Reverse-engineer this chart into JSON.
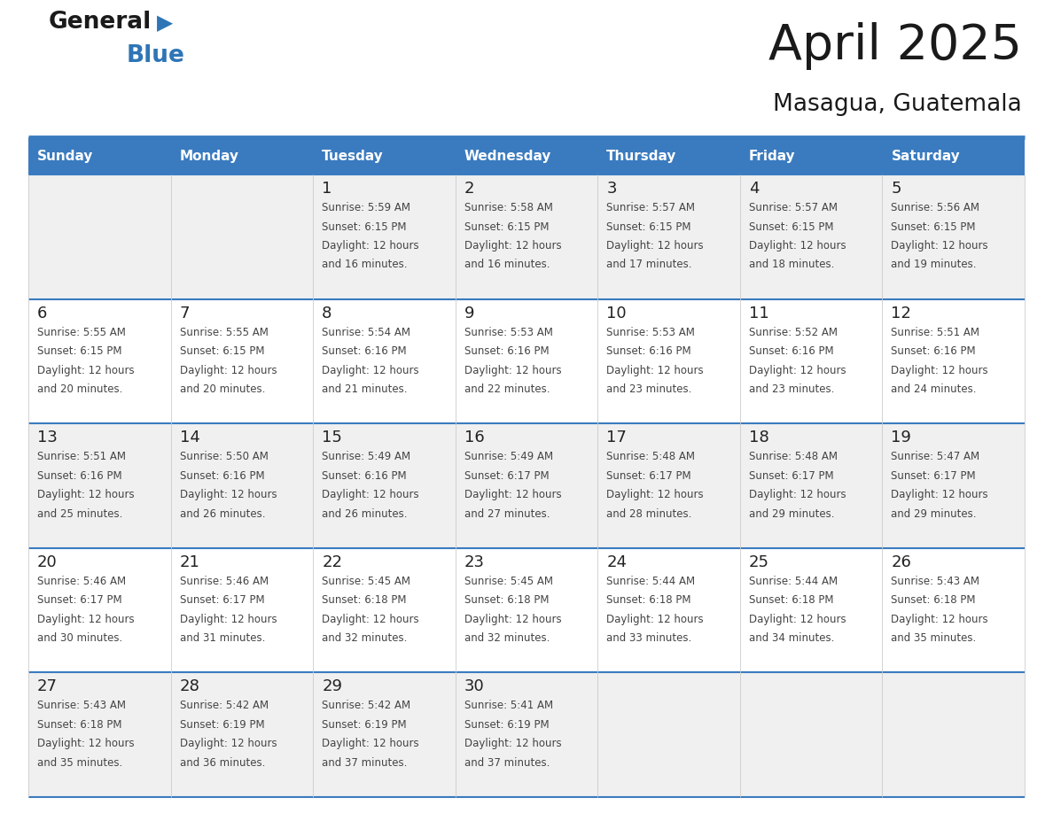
{
  "title": "April 2025",
  "subtitle": "Masagua, Guatemala",
  "days_of_week": [
    "Sunday",
    "Monday",
    "Tuesday",
    "Wednesday",
    "Thursday",
    "Friday",
    "Saturday"
  ],
  "header_bg": "#3a7bbf",
  "header_text": "#ffffff",
  "row_bg_odd": "#f0f0f0",
  "row_bg_even": "#ffffff",
  "border_color": "#3a7bbf",
  "cell_border_color": "#bbbbbb",
  "text_color": "#444444",
  "day_num_color": "#222222",
  "title_color": "#1a1a1a",
  "logo_text_color": "#1a1a1a",
  "logo_blue_color": "#2e75b6",
  "calendar_data": [
    [
      null,
      null,
      {
        "day": "1",
        "sunrise": "5:59 AM",
        "sunset": "6:15 PM",
        "daylight_suffix": "16 minutes."
      },
      {
        "day": "2",
        "sunrise": "5:58 AM",
        "sunset": "6:15 PM",
        "daylight_suffix": "16 minutes."
      },
      {
        "day": "3",
        "sunrise": "5:57 AM",
        "sunset": "6:15 PM",
        "daylight_suffix": "17 minutes."
      },
      {
        "day": "4",
        "sunrise": "5:57 AM",
        "sunset": "6:15 PM",
        "daylight_suffix": "18 minutes."
      },
      {
        "day": "5",
        "sunrise": "5:56 AM",
        "sunset": "6:15 PM",
        "daylight_suffix": "19 minutes."
      }
    ],
    [
      {
        "day": "6",
        "sunrise": "5:55 AM",
        "sunset": "6:15 PM",
        "daylight_suffix": "20 minutes."
      },
      {
        "day": "7",
        "sunrise": "5:55 AM",
        "sunset": "6:15 PM",
        "daylight_suffix": "20 minutes."
      },
      {
        "day": "8",
        "sunrise": "5:54 AM",
        "sunset": "6:16 PM",
        "daylight_suffix": "21 minutes."
      },
      {
        "day": "9",
        "sunrise": "5:53 AM",
        "sunset": "6:16 PM",
        "daylight_suffix": "22 minutes."
      },
      {
        "day": "10",
        "sunrise": "5:53 AM",
        "sunset": "6:16 PM",
        "daylight_suffix": "23 minutes."
      },
      {
        "day": "11",
        "sunrise": "5:52 AM",
        "sunset": "6:16 PM",
        "daylight_suffix": "23 minutes."
      },
      {
        "day": "12",
        "sunrise": "5:51 AM",
        "sunset": "6:16 PM",
        "daylight_suffix": "24 minutes."
      }
    ],
    [
      {
        "day": "13",
        "sunrise": "5:51 AM",
        "sunset": "6:16 PM",
        "daylight_suffix": "25 minutes."
      },
      {
        "day": "14",
        "sunrise": "5:50 AM",
        "sunset": "6:16 PM",
        "daylight_suffix": "26 minutes."
      },
      {
        "day": "15",
        "sunrise": "5:49 AM",
        "sunset": "6:16 PM",
        "daylight_suffix": "26 minutes."
      },
      {
        "day": "16",
        "sunrise": "5:49 AM",
        "sunset": "6:17 PM",
        "daylight_suffix": "27 minutes."
      },
      {
        "day": "17",
        "sunrise": "5:48 AM",
        "sunset": "6:17 PM",
        "daylight_suffix": "28 minutes."
      },
      {
        "day": "18",
        "sunrise": "5:48 AM",
        "sunset": "6:17 PM",
        "daylight_suffix": "29 minutes."
      },
      {
        "day": "19",
        "sunrise": "5:47 AM",
        "sunset": "6:17 PM",
        "daylight_suffix": "29 minutes."
      }
    ],
    [
      {
        "day": "20",
        "sunrise": "5:46 AM",
        "sunset": "6:17 PM",
        "daylight_suffix": "30 minutes."
      },
      {
        "day": "21",
        "sunrise": "5:46 AM",
        "sunset": "6:17 PM",
        "daylight_suffix": "31 minutes."
      },
      {
        "day": "22",
        "sunrise": "5:45 AM",
        "sunset": "6:18 PM",
        "daylight_suffix": "32 minutes."
      },
      {
        "day": "23",
        "sunrise": "5:45 AM",
        "sunset": "6:18 PM",
        "daylight_suffix": "32 minutes."
      },
      {
        "day": "24",
        "sunrise": "5:44 AM",
        "sunset": "6:18 PM",
        "daylight_suffix": "33 minutes."
      },
      {
        "day": "25",
        "sunrise": "5:44 AM",
        "sunset": "6:18 PM",
        "daylight_suffix": "34 minutes."
      },
      {
        "day": "26",
        "sunrise": "5:43 AM",
        "sunset": "6:18 PM",
        "daylight_suffix": "35 minutes."
      }
    ],
    [
      {
        "day": "27",
        "sunrise": "5:43 AM",
        "sunset": "6:18 PM",
        "daylight_suffix": "35 minutes."
      },
      {
        "day": "28",
        "sunrise": "5:42 AM",
        "sunset": "6:19 PM",
        "daylight_suffix": "36 minutes."
      },
      {
        "day": "29",
        "sunrise": "5:42 AM",
        "sunset": "6:19 PM",
        "daylight_suffix": "37 minutes."
      },
      {
        "day": "30",
        "sunrise": "5:41 AM",
        "sunset": "6:19 PM",
        "daylight_suffix": "37 minutes."
      },
      null,
      null,
      null
    ]
  ]
}
